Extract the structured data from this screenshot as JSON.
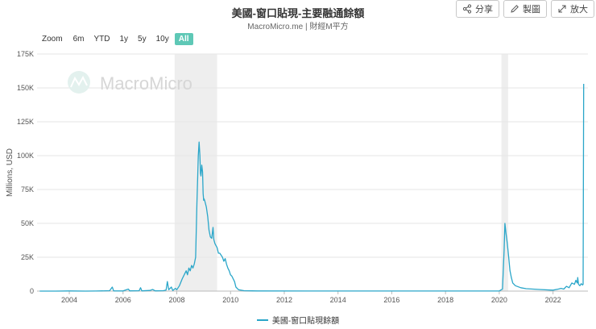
{
  "header": {
    "title": "美國-窗口貼現-主要融通餘額",
    "subtitle": "MacroMicro.me | 財經M平方"
  },
  "toolbar": {
    "share_label": "分享",
    "edit_label": "製圖",
    "expand_label": "放大"
  },
  "zoom": {
    "label": "Zoom",
    "options": [
      "6m",
      "YTD",
      "1y",
      "5y",
      "10y",
      "All"
    ],
    "selected": "All"
  },
  "watermark": "MacroMicro",
  "colors": {
    "series": "#2aa6c9",
    "recession": "#eeeeee",
    "active_zoom": "#5ec8b6"
  },
  "chart_data": {
    "type": "line",
    "ylabel": "Millions, USD",
    "ylim": [
      0,
      175000
    ],
    "xlim": [
      2002.8,
      2023.3
    ],
    "y_ticks": [
      0,
      25000,
      50000,
      75000,
      100000,
      125000,
      150000,
      175000
    ],
    "y_tick_labels": [
      "0",
      "25K",
      "50K",
      "75K",
      "100K",
      "125K",
      "150K",
      "175K"
    ],
    "x_ticks": [
      2004,
      2006,
      2008,
      2010,
      2012,
      2014,
      2016,
      2018,
      2020,
      2022
    ],
    "x_tick_labels": [
      "2004",
      "2006",
      "2008",
      "2010",
      "2012",
      "2014",
      "2016",
      "2018",
      "2020",
      "2022"
    ],
    "recession_bands": [
      [
        2007.92,
        2009.5
      ],
      [
        2020.08,
        2020.33
      ]
    ],
    "grid": true,
    "legend_position": "bottom-center",
    "series": [
      {
        "name": "美國-窗口貼現餘額",
        "points": [
          [
            2002.9,
            0
          ],
          [
            2003.5,
            0
          ],
          [
            2004.0,
            100
          ],
          [
            2004.6,
            0
          ],
          [
            2005.0,
            50
          ],
          [
            2005.5,
            300
          ],
          [
            2005.6,
            3000
          ],
          [
            2005.65,
            200
          ],
          [
            2006.0,
            100
          ],
          [
            2006.2,
            1500
          ],
          [
            2006.25,
            200
          ],
          [
            2006.6,
            300
          ],
          [
            2006.65,
            2500
          ],
          [
            2006.7,
            200
          ],
          [
            2007.0,
            500
          ],
          [
            2007.1,
            1200
          ],
          [
            2007.2,
            200
          ],
          [
            2007.5,
            300
          ],
          [
            2007.6,
            800
          ],
          [
            2007.65,
            7000
          ],
          [
            2007.7,
            1000
          ],
          [
            2007.8,
            3000
          ],
          [
            2007.85,
            500
          ],
          [
            2007.95,
            2000
          ],
          [
            2008.0,
            1000
          ],
          [
            2008.1,
            4000
          ],
          [
            2008.2,
            9000
          ],
          [
            2008.3,
            13000
          ],
          [
            2008.35,
            15000
          ],
          [
            2008.4,
            12000
          ],
          [
            2008.45,
            17000
          ],
          [
            2008.5,
            15000
          ],
          [
            2008.55,
            19000
          ],
          [
            2008.6,
            17000
          ],
          [
            2008.65,
            20000
          ],
          [
            2008.7,
            25000
          ],
          [
            2008.72,
            40000
          ],
          [
            2008.75,
            65000
          ],
          [
            2008.78,
            85000
          ],
          [
            2008.8,
            100000
          ],
          [
            2008.83,
            110000
          ],
          [
            2008.86,
            100000
          ],
          [
            2008.88,
            87000
          ],
          [
            2008.9,
            85000
          ],
          [
            2008.93,
            93000
          ],
          [
            2008.96,
            88000
          ],
          [
            2008.98,
            72000
          ],
          [
            2009.0,
            67000
          ],
          [
            2009.02,
            68000
          ],
          [
            2009.05,
            66000
          ],
          [
            2009.1,
            62000
          ],
          [
            2009.15,
            55000
          ],
          [
            2009.2,
            45000
          ],
          [
            2009.25,
            40000
          ],
          [
            2009.3,
            39000
          ],
          [
            2009.35,
            47000
          ],
          [
            2009.38,
            38000
          ],
          [
            2009.42,
            35000
          ],
          [
            2009.5,
            32000
          ],
          [
            2009.55,
            28000
          ],
          [
            2009.6,
            28000
          ],
          [
            2009.7,
            25000
          ],
          [
            2009.75,
            22000
          ],
          [
            2009.8,
            24000
          ],
          [
            2009.85,
            20000
          ],
          [
            2009.9,
            17000
          ],
          [
            2009.95,
            15000
          ],
          [
            2010.0,
            12000
          ],
          [
            2010.05,
            11000
          ],
          [
            2010.1,
            9000
          ],
          [
            2010.15,
            7000
          ],
          [
            2010.2,
            3000
          ],
          [
            2010.3,
            1000
          ],
          [
            2010.5,
            300
          ],
          [
            2010.8,
            150
          ],
          [
            2011.0,
            100
          ],
          [
            2014.0,
            50
          ],
          [
            2018.0,
            50
          ],
          [
            2020.0,
            100
          ],
          [
            2020.12,
            1500
          ],
          [
            2020.18,
            30000
          ],
          [
            2020.21,
            50000
          ],
          [
            2020.25,
            43000
          ],
          [
            2020.3,
            35000
          ],
          [
            2020.35,
            25000
          ],
          [
            2020.4,
            15000
          ],
          [
            2020.45,
            10000
          ],
          [
            2020.5,
            6000
          ],
          [
            2020.6,
            4000
          ],
          [
            2020.8,
            2500
          ],
          [
            2021.0,
            1800
          ],
          [
            2021.5,
            1200
          ],
          [
            2021.9,
            800
          ],
          [
            2022.0,
            700
          ],
          [
            2022.2,
            1500
          ],
          [
            2022.3,
            2000
          ],
          [
            2022.4,
            1500
          ],
          [
            2022.5,
            3500
          ],
          [
            2022.6,
            2500
          ],
          [
            2022.7,
            6000
          ],
          [
            2022.8,
            5000
          ],
          [
            2022.85,
            8000
          ],
          [
            2022.9,
            6000
          ],
          [
            2022.92,
            10000
          ],
          [
            2022.95,
            5000
          ],
          [
            2023.0,
            4000
          ],
          [
            2023.05,
            5500
          ],
          [
            2023.1,
            4500
          ],
          [
            2023.12,
            5000
          ],
          [
            2023.14,
            153000
          ]
        ]
      }
    ]
  }
}
